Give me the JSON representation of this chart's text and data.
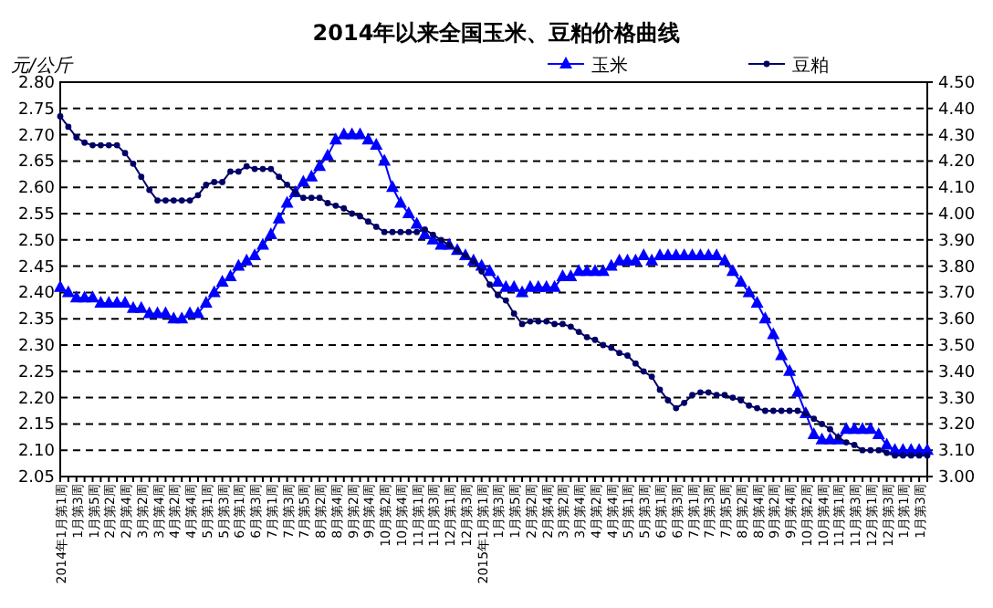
{
  "chart_data": {
    "type": "line",
    "title": "2014年以来全国玉米、豆粕价格曲线",
    "ylabel": "元/公斤",
    "categories": [
      "2014年1月第1周",
      null,
      "1月第3周",
      null,
      "1月第5周",
      null,
      "2月第2周",
      null,
      "2月第4周",
      null,
      "3月第2周",
      null,
      "3月第4周",
      null,
      "4月第2周",
      null,
      "4月第4周",
      null,
      "5月第1周",
      null,
      "5月第3周",
      null,
      "6月第1周",
      null,
      "6月第3周",
      null,
      "7月第1周",
      null,
      "7月第3周",
      null,
      "7月第5周",
      null,
      "8月第2周",
      null,
      "8月第4周",
      null,
      "9月第2周",
      null,
      "9月第4周",
      null,
      "10月第2周",
      null,
      "10月第4周",
      null,
      "11月第1周",
      null,
      "11月第3周",
      null,
      "12月第1周",
      null,
      "12月第3周",
      null,
      "2015年1月第1周",
      null,
      "1月第3周",
      null,
      "1月第5周",
      null,
      "2月第2周",
      null,
      "2月第4周",
      null,
      "3月第2周",
      null,
      "3月第4周",
      null,
      "4月第2周",
      null,
      "4月第4周",
      null,
      "5月第1周",
      null,
      "5月第3周",
      null,
      "6月第1周",
      null,
      "6月第3周",
      null,
      "7月第1周",
      null,
      "7月第3周",
      null,
      "7月第5周",
      null,
      "8月第2周",
      null,
      "8月第4周",
      null,
      "9月第2周",
      null,
      "9月第4周",
      null,
      "10月第2周",
      null,
      "10月第4周",
      null,
      "11月第1周",
      null,
      "11月第3周",
      null,
      "12月第1周",
      null,
      "12月第3周",
      null,
      "1月第1周",
      null,
      "1月第3周",
      null
    ],
    "series": [
      {
        "name": "玉米",
        "color": "#0000ff",
        "marker": "triangle",
        "values": [
          2.41,
          2.4,
          2.39,
          2.39,
          2.39,
          2.38,
          2.38,
          2.38,
          2.38,
          2.37,
          2.37,
          2.36,
          2.36,
          2.36,
          2.35,
          2.35,
          2.36,
          2.36,
          2.38,
          2.4,
          2.42,
          2.43,
          2.45,
          2.46,
          2.47,
          2.49,
          2.51,
          2.54,
          2.57,
          2.59,
          2.61,
          2.62,
          2.64,
          2.66,
          2.69,
          2.7,
          2.7,
          2.7,
          2.69,
          2.68,
          2.65,
          2.6,
          2.57,
          2.55,
          2.53,
          2.51,
          2.5,
          2.49,
          2.49,
          2.48,
          2.47,
          2.46,
          2.45,
          2.44,
          2.42,
          2.41,
          2.41,
          2.4,
          2.41,
          2.41,
          2.41,
          2.41,
          2.43,
          2.43,
          2.44,
          2.44,
          2.44,
          2.44,
          2.45,
          2.46,
          2.46,
          2.46,
          2.47,
          2.46,
          2.47,
          2.47,
          2.47,
          2.47,
          2.47,
          2.47,
          2.47,
          2.47,
          2.46,
          2.44,
          2.42,
          2.4,
          2.38,
          2.35,
          2.32,
          2.28,
          2.25,
          2.21,
          2.17,
          2.13,
          2.12,
          2.12,
          2.12,
          2.14,
          2.14,
          2.14,
          2.14,
          2.13,
          2.11,
          2.1,
          2.1,
          2.1,
          2.1,
          2.1
        ]
      },
      {
        "name": "豆粕",
        "color": "#000066",
        "marker": "circle",
        "axis": "y2",
        "values": [
          4.37,
          4.33,
          4.29,
          4.27,
          4.26,
          4.26,
          4.26,
          4.26,
          4.23,
          4.19,
          4.14,
          4.09,
          4.05,
          4.05,
          4.05,
          4.05,
          4.05,
          4.07,
          4.11,
          4.12,
          4.12,
          4.16,
          4.16,
          4.18,
          4.17,
          4.17,
          4.17,
          4.14,
          4.11,
          4.08,
          4.06,
          4.06,
          4.06,
          4.04,
          4.03,
          4.02,
          4.0,
          3.99,
          3.97,
          3.95,
          3.93,
          3.93,
          3.93,
          3.93,
          3.93,
          3.94,
          3.92,
          3.9,
          3.88,
          3.86,
          3.84,
          3.82,
          3.78,
          3.73,
          3.69,
          3.67,
          3.62,
          3.58,
          3.59,
          3.59,
          3.59,
          3.58,
          3.58,
          3.57,
          3.55,
          3.53,
          3.52,
          3.5,
          3.49,
          3.47,
          3.46,
          3.43,
          3.4,
          3.38,
          3.33,
          3.29,
          3.26,
          3.28,
          3.31,
          3.32,
          3.32,
          3.31,
          3.31,
          3.3,
          3.29,
          3.27,
          3.26,
          3.25,
          3.25,
          3.25,
          3.25,
          3.25,
          3.24,
          3.22,
          3.2,
          3.18,
          3.15,
          3.13,
          3.12,
          3.1,
          3.1,
          3.1,
          3.09,
          3.08,
          3.08,
          3.08,
          3.08,
          3.08
        ]
      }
    ],
    "ylim": [
      2.05,
      2.8
    ],
    "yticks": [
      {
        "value": 2.05,
        "label": "2.05"
      },
      {
        "value": 2.1,
        "label": "2.10"
      },
      {
        "value": 2.15,
        "label": "2.15"
      },
      {
        "value": 2.2,
        "label": "2.20"
      },
      {
        "value": 2.25,
        "label": "2.25"
      },
      {
        "value": 2.3,
        "label": "2.30"
      },
      {
        "value": 2.35,
        "label": "2.35"
      },
      {
        "value": 2.4,
        "label": "2.40"
      },
      {
        "value": 2.45,
        "label": "2.45"
      },
      {
        "value": 2.5,
        "label": "2.50"
      },
      {
        "value": 2.55,
        "label": "2.55"
      },
      {
        "value": 2.6,
        "label": "2.60"
      },
      {
        "value": 2.65,
        "label": "2.65"
      },
      {
        "value": 2.7,
        "label": "2.70"
      },
      {
        "value": 2.75,
        "label": "2.75"
      },
      {
        "value": 2.8,
        "label": "2.80"
      }
    ],
    "y2lim": [
      3.0,
      4.5
    ],
    "y2ticks": [
      {
        "value": 3.0,
        "label": "3.00"
      },
      {
        "value": 3.1,
        "label": "3.10"
      },
      {
        "value": 3.2,
        "label": "3.20"
      },
      {
        "value": 3.3,
        "label": "3.30"
      },
      {
        "value": 3.4,
        "label": "3.40"
      },
      {
        "value": 3.5,
        "label": "3.50"
      },
      {
        "value": 3.6,
        "label": "3.60"
      },
      {
        "value": 3.7,
        "label": "3.70"
      },
      {
        "value": 3.8,
        "label": "3.80"
      },
      {
        "value": 3.9,
        "label": "3.90"
      },
      {
        "value": 4.0,
        "label": "4.00"
      },
      {
        "value": 4.1,
        "label": "4.10"
      },
      {
        "value": 4.2,
        "label": "4.20"
      },
      {
        "value": 4.3,
        "label": "4.30"
      },
      {
        "value": 4.4,
        "label": "4.40"
      },
      {
        "value": 4.5,
        "label": "4.50"
      }
    ],
    "grid": "y",
    "legend": "top right",
    "line_style": "solid"
  }
}
